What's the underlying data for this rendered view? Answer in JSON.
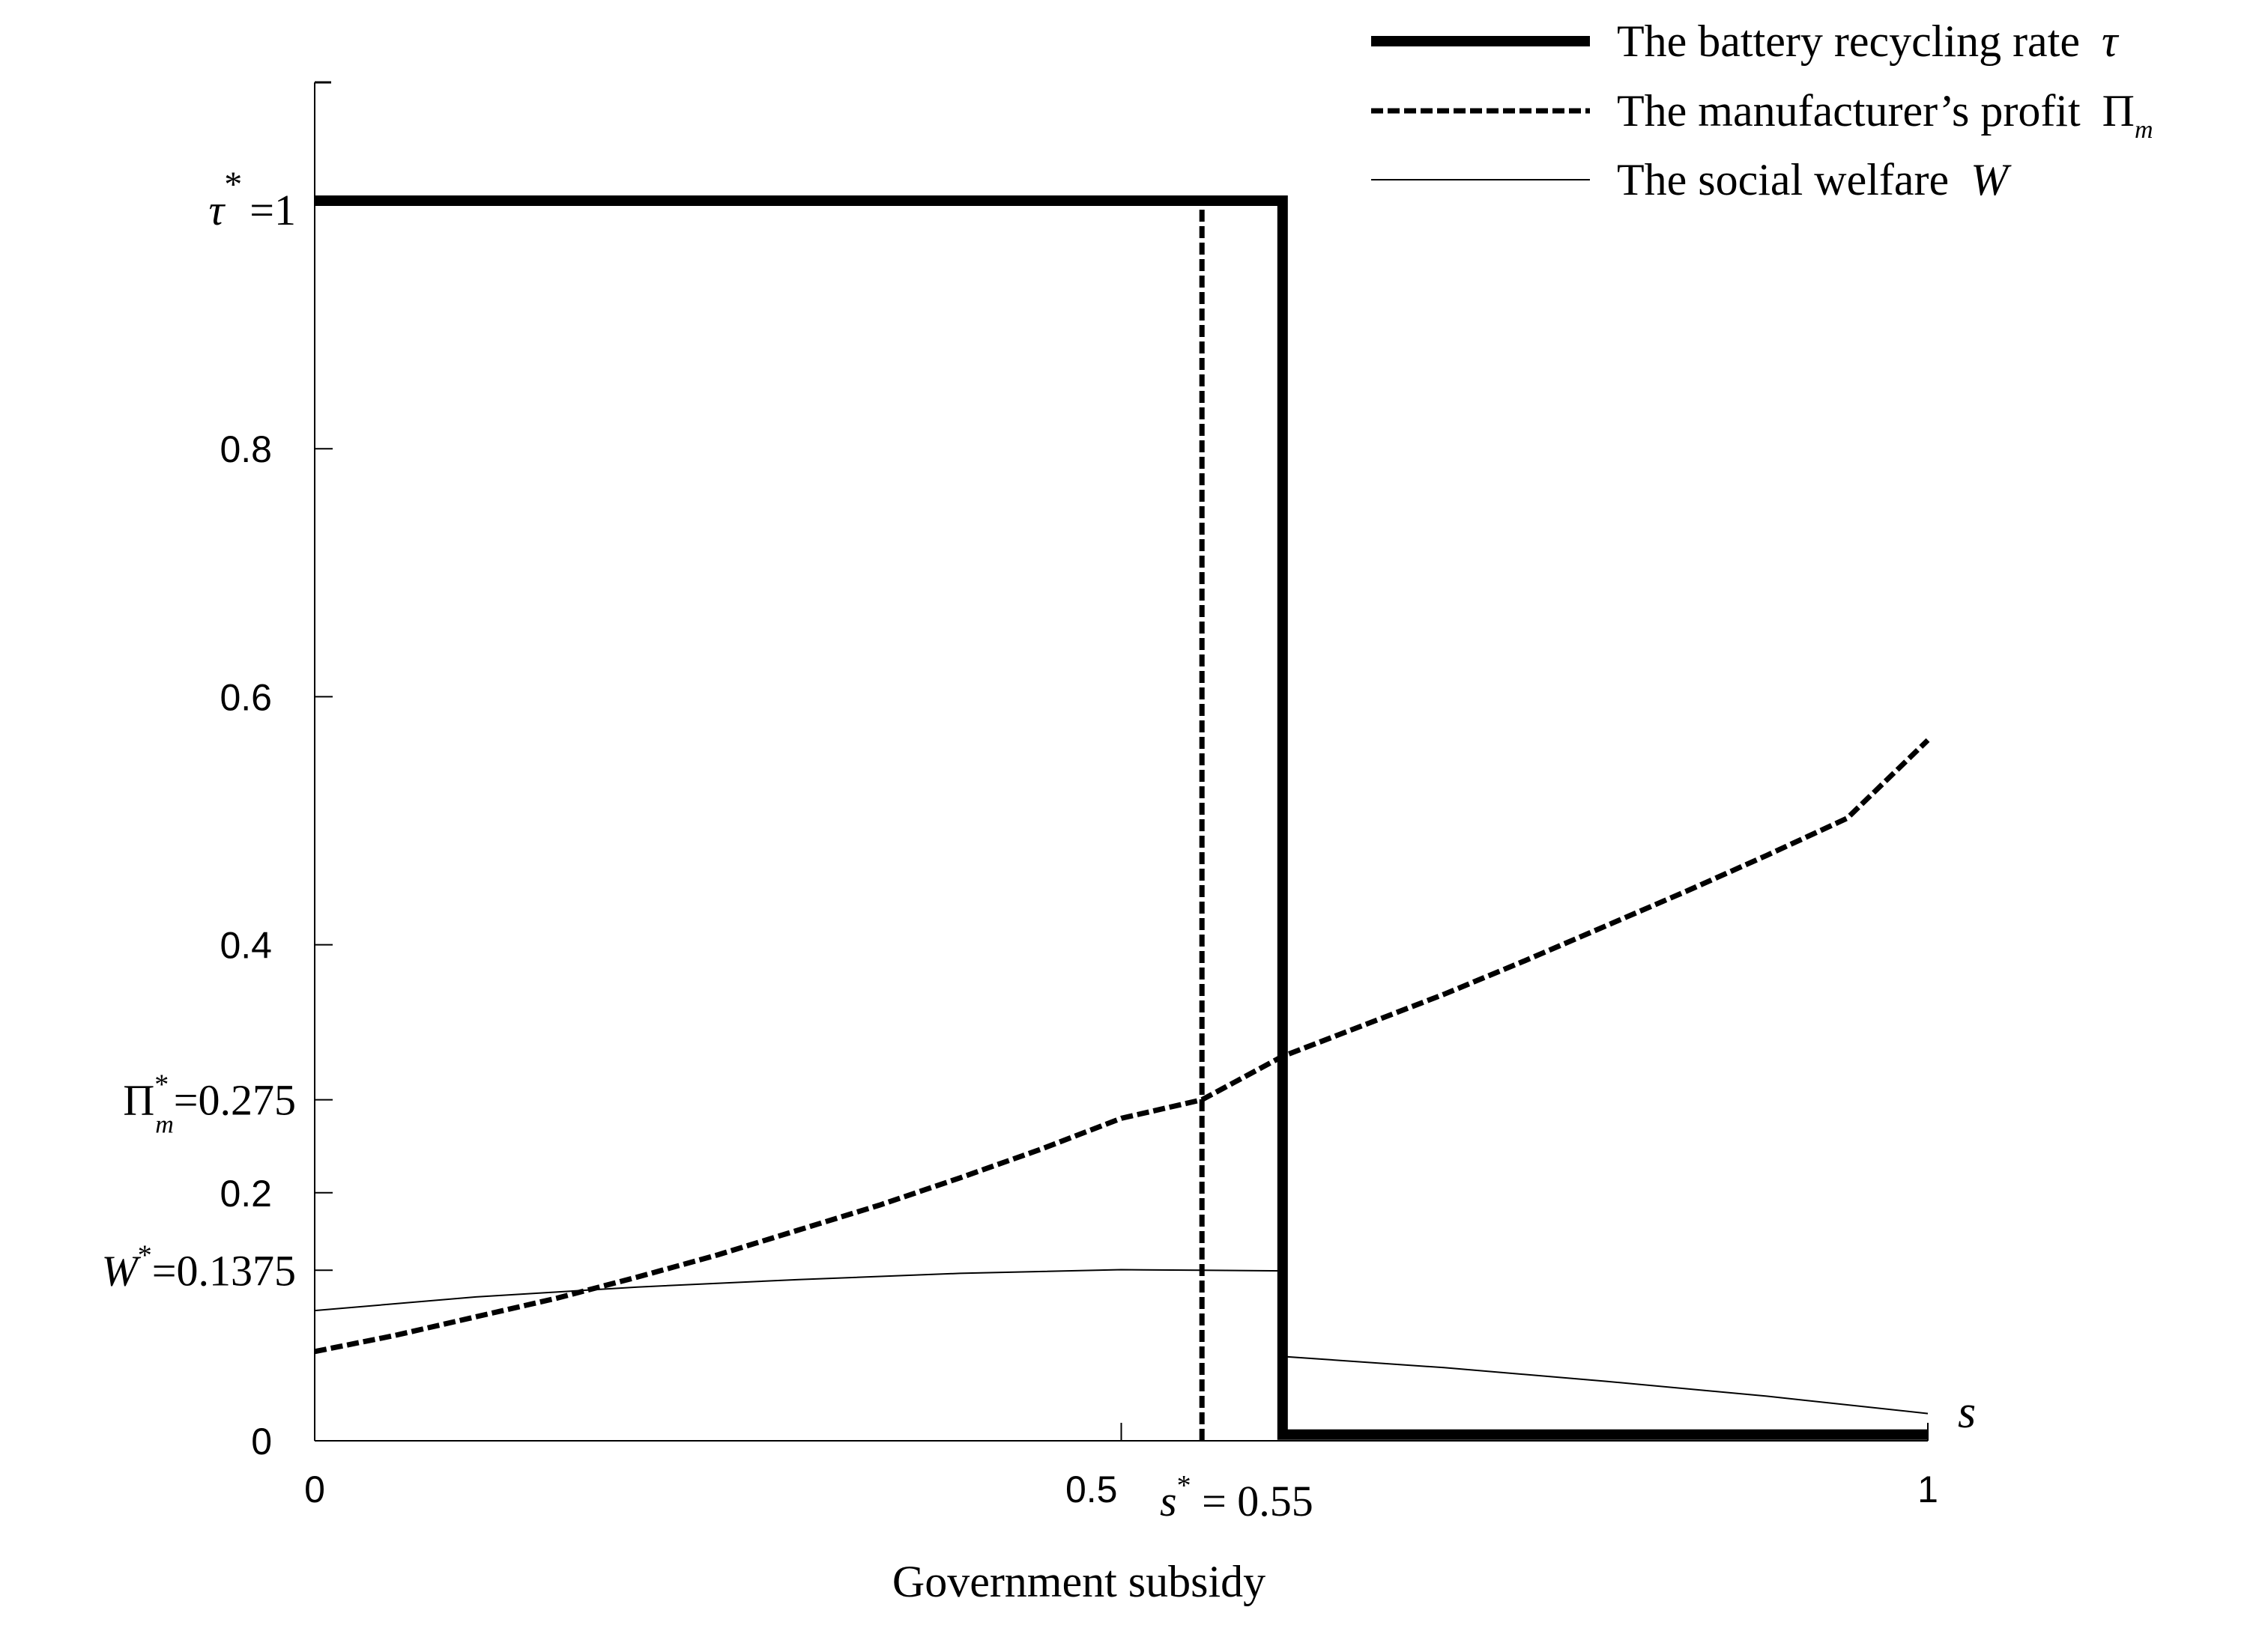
{
  "chart_data": {
    "type": "line",
    "xlabel": "Government subsidy",
    "ylabel": "",
    "xlim": [
      0,
      1
    ],
    "ylim": [
      0,
      1.1
    ],
    "x_ticks": [
      {
        "value": 0,
        "label": "0"
      },
      {
        "value": 0.5,
        "label": "0.5"
      },
      {
        "value": 1,
        "label": "1"
      }
    ],
    "y_ticks": [
      {
        "value": 0,
        "label": "0"
      },
      {
        "value": 0.2,
        "label": "0.2"
      },
      {
        "value": 0.4,
        "label": "0.4"
      },
      {
        "value": 0.6,
        "label": "0.6"
      },
      {
        "value": 0.8,
        "label": "0.8"
      }
    ],
    "x_axis_end_symbol": "s",
    "annotations": {
      "tau_star": {
        "symbol": "τ",
        "sup": "*",
        "rest": "=1",
        "value": 1
      },
      "pi_star": {
        "symbol": "Π",
        "sup": "*",
        "sub": "m",
        "rest": "=0.275",
        "value": 0.275
      },
      "w_star": {
        "symbol": "W",
        "sup": "*",
        "rest": "=0.1375",
        "value": 0.1375
      },
      "s_star": {
        "symbol": "s",
        "sup": "*",
        "rest": " = 0.55",
        "value": 0.55
      }
    },
    "legend": {
      "position": "top-right",
      "entries": [
        {
          "text": "The battery recycling rate ",
          "symbol": "τ",
          "sub": "",
          "style": "thick"
        },
        {
          "text": "The manufacturer’s profit ",
          "symbol": "Π",
          "sub": "m",
          "style": "dashed"
        },
        {
          "text": "The social welfare ",
          "symbol": "W",
          "sub": "",
          "style": "thin"
        }
      ]
    },
    "series": [
      {
        "style": "thick",
        "x": [
          0,
          0.6,
          0.6,
          1
        ],
        "y": [
          1,
          1,
          0.005,
          0.005
        ]
      },
      {
        "style": "dashed",
        "x": [
          0,
          0.05,
          0.1,
          0.15,
          0.2,
          0.25,
          0.3,
          0.35,
          0.4,
          0.45,
          0.5,
          0.55,
          0.6,
          0.65,
          0.7,
          0.75,
          0.8,
          0.85,
          0.9,
          0.95,
          1
        ],
        "y": [
          0.072,
          0.085,
          0.1,
          0.115,
          0.132,
          0.15,
          0.17,
          0.19,
          0.212,
          0.235,
          0.26,
          0.275,
          0.31,
          0.335,
          0.36,
          0.387,
          0.415,
          0.443,
          0.472,
          0.502,
          0.565
        ]
      },
      {
        "style": "thin",
        "x": [
          0,
          0.1,
          0.2,
          0.3,
          0.4,
          0.5,
          0.55,
          0.6,
          0.6,
          0.7,
          0.8,
          0.9,
          1
        ],
        "y": [
          0.105,
          0.116,
          0.124,
          0.13,
          0.135,
          0.138,
          0.1375,
          0.137,
          0.068,
          0.059,
          0.048,
          0.036,
          0.022
        ]
      },
      {
        "style": "dashed",
        "x": [
          0.55,
          0.55
        ],
        "y": [
          0,
          1
        ]
      }
    ],
    "grid": false
  }
}
